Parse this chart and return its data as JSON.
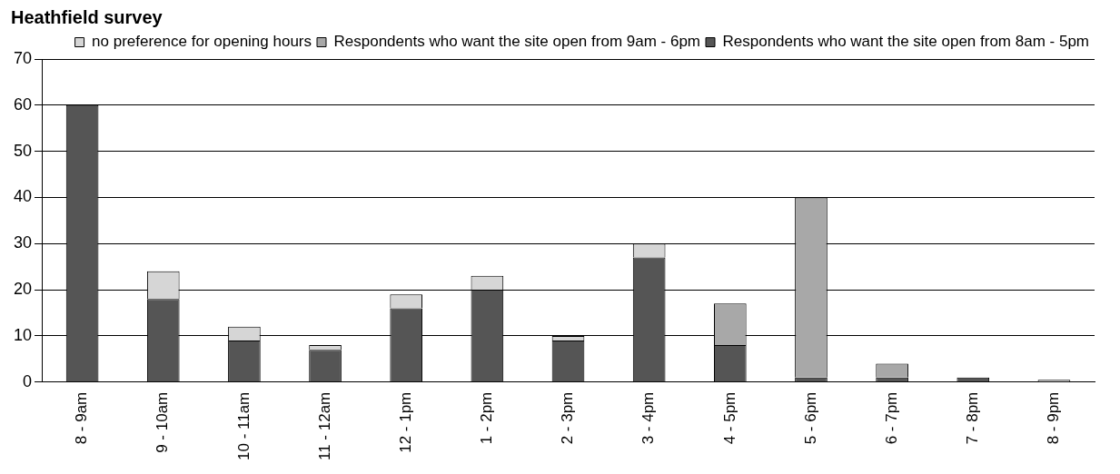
{
  "chart_data": {
    "type": "bar",
    "title": "Heathfield survey",
    "stacked": true,
    "categories": [
      "8 - 9am",
      "9 - 10am",
      "10 - 11am",
      "11 - 12am",
      "12 - 1pm",
      "1 - 2pm",
      "2 - 3pm",
      "3 - 4pm",
      "4 - 5pm",
      "5 - 6pm",
      "6 - 7pm",
      "7 - 8pm",
      "8 - 9pm"
    ],
    "series": [
      {
        "name": "Respondents who want the site open from 8am - 5pm",
        "color": "#555555",
        "values": [
          60,
          18,
          9,
          7,
          16,
          20,
          9,
          27,
          8,
          1,
          1,
          1,
          0
        ]
      },
      {
        "name": "Respondents who want the site open from 9am - 6pm",
        "color": "#a8a8a8",
        "values": [
          0,
          0,
          0,
          0,
          0,
          0,
          0,
          0,
          9,
          39,
          3,
          0,
          0
        ]
      },
      {
        "name": "no preference for opening hours",
        "color": "#d6d6d6",
        "values": [
          0,
          6,
          3,
          1,
          3,
          3,
          1,
          3,
          0,
          0,
          0,
          0,
          0.5
        ]
      }
    ],
    "ylim": [
      0,
      70
    ],
    "yticks": [
      0,
      10,
      20,
      30,
      40,
      50,
      60,
      70
    ],
    "grid": "y",
    "legend": "top right"
  }
}
